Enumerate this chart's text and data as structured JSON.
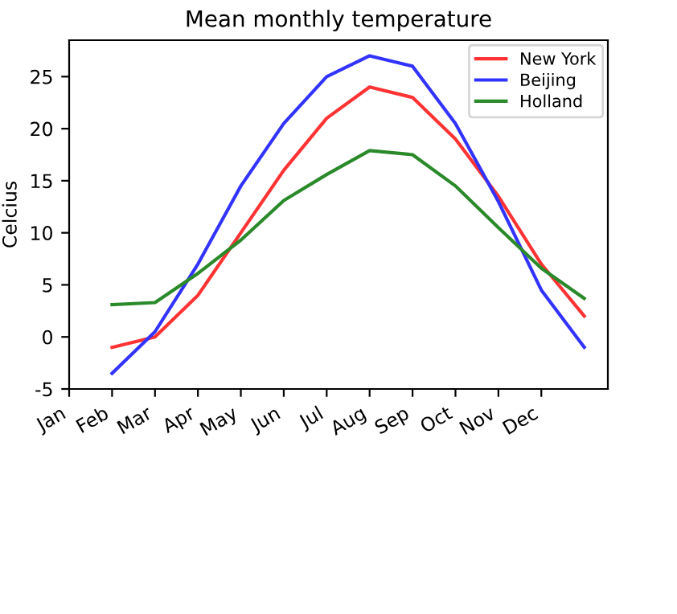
{
  "chart_data": {
    "type": "line",
    "title": "Mean monthly temperature",
    "ylabel": "Celcius",
    "categories": [
      "Jan",
      "Feb",
      "Mar",
      "Apr",
      "May",
      "Jun",
      "Jul",
      "Aug",
      "Sep",
      "Oct",
      "Nov",
      "Dec",
      null
    ],
    "series": [
      {
        "name": "New York",
        "color": "#ff3333",
        "values": [
          null,
          -1,
          0,
          4,
          10,
          16,
          21,
          24,
          23,
          19,
          13.5,
          7,
          2
        ]
      },
      {
        "name": "Beijing",
        "color": "#3333ff",
        "values": [
          null,
          -3.5,
          0.5,
          7,
          14.5,
          20.5,
          25,
          27,
          26,
          20.5,
          13,
          4.5,
          -1
        ]
      },
      {
        "name": "Holland",
        "color": "#2a8a2a",
        "values": [
          null,
          3.1,
          3.3,
          6.1,
          9.3,
          13.1,
          15.6,
          17.9,
          17.5,
          14.5,
          10.5,
          6.6,
          3.7
        ]
      }
    ],
    "ylim": [
      -5,
      28.5
    ],
    "yticks": [
      -5,
      0,
      5,
      10,
      15,
      20,
      25
    ],
    "legend": "top right",
    "line_style": "solid"
  }
}
